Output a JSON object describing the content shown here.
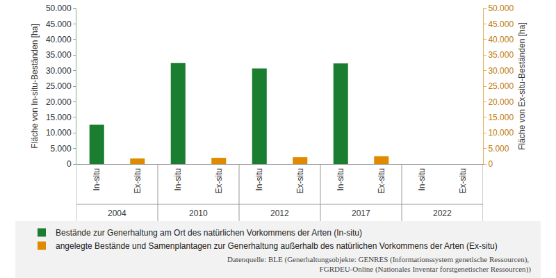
{
  "chart_data": {
    "type": "bar",
    "categories": [
      "2004",
      "2010",
      "2012",
      "2017",
      "2022"
    ],
    "subcategories": [
      "In-situ",
      "Ex-situ"
    ],
    "series": [
      {
        "name": "Bestände zur Generhaltung am Ort des natürlichen Vorkommens der Arten (In-situ)",
        "color": "#1b7d2f",
        "axis": "y",
        "values": [
          12600,
          32400,
          30700,
          32300,
          null
        ]
      },
      {
        "name": "angelegte Bestände und Samenplantagen zur Generhaltung außerhalb des natürlichen Vorkommens der Arten (Ex-situ)",
        "color": "#e08a00",
        "axis": "y2",
        "values": [
          1800,
          2000,
          2200,
          2500,
          null
        ]
      }
    ],
    "y_label": "Fläche von In-situ-Beständen [ha]",
    "y2_label": "Fläche von Ex-situ-Beständen [ha]",
    "ylim": [
      0,
      50000
    ],
    "yticks": [
      0,
      {
        "value": 5000,
        "label": "5.000"
      },
      {
        "value": 10000,
        "label": "10.000"
      },
      {
        "value": 15000,
        "label": "15.000"
      },
      {
        "value": 20000,
        "label": "20.000"
      },
      {
        "value": 25000,
        "label": "25.000"
      },
      {
        "value": 30000,
        "label": "30.000"
      },
      {
        "value": 35000,
        "label": "35.000"
      },
      {
        "value": 40000,
        "label": "40.000"
      },
      {
        "value": 45000,
        "label": "45.000"
      },
      {
        "value": 50000,
        "label": "50.000"
      }
    ],
    "y2lim": [
      0,
      50000
    ],
    "y2ticks": [
      0,
      {
        "value": 5000,
        "label": "5.000"
      },
      {
        "value": 10000,
        "label": "10.000"
      },
      {
        "value": 15000,
        "label": "15.000"
      },
      {
        "value": 20000,
        "label": "20.000"
      },
      {
        "value": 25000,
        "label": "25.000"
      },
      {
        "value": 30000,
        "label": "30.000"
      },
      {
        "value": 35000,
        "label": "35.000"
      },
      {
        "value": 40000,
        "label": "40.000"
      },
      {
        "value": 45000,
        "label": "45.000"
      },
      {
        "value": 50000,
        "label": "50.000"
      }
    ],
    "grid": false,
    "legend": "bottom",
    "source": "Datenquelle: BLE (Generhaltungsobjekte: GENRES (Informationssystem genetische Ressourcen), FGRDEU-Online (Nationales Inventar forstgenetischer Ressourcen))"
  }
}
